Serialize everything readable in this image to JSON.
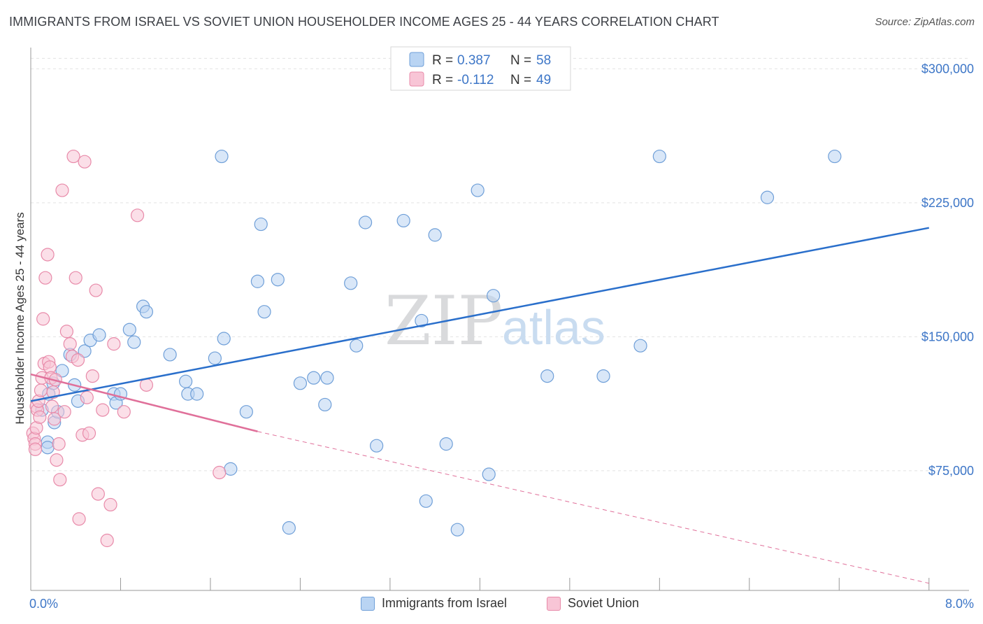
{
  "title": "IMMIGRANTS FROM ISRAEL VS SOVIET UNION HOUSEHOLDER INCOME AGES 25 - 44 YEARS CORRELATION CHART",
  "source": "Source: ZipAtlas.com",
  "watermark": {
    "zip": "ZIP",
    "atlas": "atlas"
  },
  "colors": {
    "israel_fill": "#b9d4f3",
    "israel_stroke": "#6f9fd8",
    "israel_line": "#2a6fcb",
    "soviet_fill": "#f8c5d6",
    "soviet_stroke": "#e88aa9",
    "soviet_line": "#e0709a",
    "grid": "#e3e3e3",
    "tick_text": "#3d76c7"
  },
  "legend": {
    "rows": [
      {
        "r_label": "R =",
        "r_value": "0.387",
        "n_label": "N =",
        "n_value": "58"
      },
      {
        "r_label": "R =",
        "r_value": "-0.112",
        "n_label": "N =",
        "n_value": "49"
      }
    ]
  },
  "chart_data": {
    "type": "scatter",
    "title": "IMMIGRANTS FROM ISRAEL VS SOVIET UNION HOUSEHOLDER INCOME AGES 25 - 44 YEARS CORRELATION CHART",
    "xlabel": "",
    "ylabel": "Householder Income Ages 25 - 44 years",
    "xlim": [
      0,
      8.4
    ],
    "ylim": [
      8000,
      308000
    ],
    "x_tick_labels": [
      "0.0%",
      "8.0%"
    ],
    "y_ticks": [
      75000,
      150000,
      225000,
      300000
    ],
    "y_tick_labels": [
      "$75,000",
      "$150,000",
      "$225,000",
      "$300,000"
    ],
    "grid": true,
    "legend_position": "top-center",
    "series": [
      {
        "name": "Immigrants from Israel",
        "r": 0.387,
        "n": 58,
        "trend": {
          "x": [
            0.0,
            8.0
          ],
          "y": [
            114000,
            211000
          ]
        },
        "points": [
          [
            0.1,
            109000
          ],
          [
            0.15,
            91000
          ],
          [
            0.15,
            88000
          ],
          [
            0.16,
            118000
          ],
          [
            0.2,
            124000
          ],
          [
            0.21,
            102000
          ],
          [
            0.24,
            108000
          ],
          [
            0.28,
            131000
          ],
          [
            0.35,
            140000
          ],
          [
            0.39,
            123000
          ],
          [
            0.42,
            114000
          ],
          [
            0.48,
            142000
          ],
          [
            0.53,
            148000
          ],
          [
            0.61,
            151000
          ],
          [
            0.74,
            118000
          ],
          [
            0.76,
            113000
          ],
          [
            0.8,
            118000
          ],
          [
            0.88,
            154000
          ],
          [
            0.92,
            147000
          ],
          [
            1.0,
            167000
          ],
          [
            1.03,
            164000
          ],
          [
            1.24,
            140000
          ],
          [
            1.38,
            125000
          ],
          [
            1.4,
            118000
          ],
          [
            1.48,
            118000
          ],
          [
            1.64,
            138000
          ],
          [
            1.7,
            251000
          ],
          [
            1.72,
            149000
          ],
          [
            1.78,
            76000
          ],
          [
            1.92,
            108000
          ],
          [
            2.02,
            181000
          ],
          [
            2.05,
            213000
          ],
          [
            2.08,
            164000
          ],
          [
            2.2,
            182000
          ],
          [
            2.3,
            43000
          ],
          [
            2.4,
            124000
          ],
          [
            2.52,
            127000
          ],
          [
            2.62,
            112000
          ],
          [
            2.64,
            127000
          ],
          [
            2.85,
            180000
          ],
          [
            2.9,
            145000
          ],
          [
            2.98,
            214000
          ],
          [
            3.08,
            89000
          ],
          [
            3.32,
            215000
          ],
          [
            3.48,
            159000
          ],
          [
            3.52,
            58000
          ],
          [
            3.6,
            207000
          ],
          [
            3.7,
            90000
          ],
          [
            3.8,
            42000
          ],
          [
            3.98,
            232000
          ],
          [
            4.08,
            73000
          ],
          [
            4.12,
            173000
          ],
          [
            4.6,
            128000
          ],
          [
            5.1,
            128000
          ],
          [
            5.43,
            145000
          ],
          [
            5.6,
            251000
          ],
          [
            6.56,
            228000
          ],
          [
            7.16,
            251000
          ]
        ]
      },
      {
        "name": "Soviet Union",
        "r": -0.112,
        "n": 49,
        "trend": {
          "x": [
            0.0,
            2.02
          ],
          "y": [
            129000,
            97000
          ]
        },
        "trend_dashed": {
          "x": [
            2.02,
            8.0
          ],
          "y": [
            97000,
            12000
          ]
        },
        "points": [
          [
            0.02,
            96000
          ],
          [
            0.03,
            93000
          ],
          [
            0.04,
            90000
          ],
          [
            0.04,
            87000
          ],
          [
            0.05,
            99000
          ],
          [
            0.05,
            111000
          ],
          [
            0.06,
            109000
          ],
          [
            0.07,
            114000
          ],
          [
            0.08,
            105000
          ],
          [
            0.09,
            120000
          ],
          [
            0.1,
            127000
          ],
          [
            0.11,
            160000
          ],
          [
            0.12,
            135000
          ],
          [
            0.13,
            183000
          ],
          [
            0.15,
            196000
          ],
          [
            0.16,
            136000
          ],
          [
            0.17,
            133000
          ],
          [
            0.18,
            127000
          ],
          [
            0.19,
            111000
          ],
          [
            0.2,
            119000
          ],
          [
            0.21,
            104000
          ],
          [
            0.22,
            126000
          ],
          [
            0.23,
            81000
          ],
          [
            0.25,
            90000
          ],
          [
            0.26,
            70000
          ],
          [
            0.28,
            232000
          ],
          [
            0.3,
            108000
          ],
          [
            0.32,
            153000
          ],
          [
            0.35,
            146000
          ],
          [
            0.37,
            139000
          ],
          [
            0.38,
            251000
          ],
          [
            0.4,
            183000
          ],
          [
            0.42,
            137000
          ],
          [
            0.43,
            48000
          ],
          [
            0.46,
            95000
          ],
          [
            0.48,
            248000
          ],
          [
            0.5,
            116000
          ],
          [
            0.52,
            96000
          ],
          [
            0.55,
            128000
          ],
          [
            0.58,
            176000
          ],
          [
            0.6,
            62000
          ],
          [
            0.64,
            109000
          ],
          [
            0.68,
            36000
          ],
          [
            0.71,
            56000
          ],
          [
            0.74,
            146000
          ],
          [
            0.83,
            108000
          ],
          [
            0.95,
            218000
          ],
          [
            1.03,
            123000
          ],
          [
            1.68,
            74000
          ]
        ]
      }
    ]
  }
}
